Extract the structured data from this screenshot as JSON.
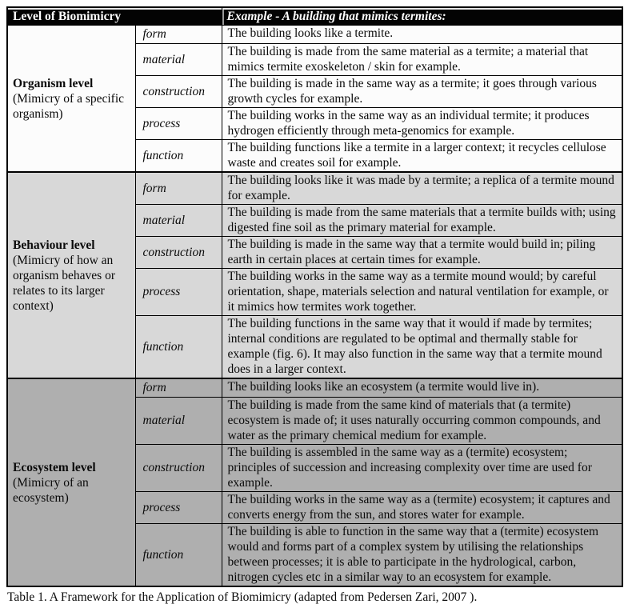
{
  "table": {
    "header": {
      "level_col": "Level of Biomimicry",
      "example_col": "Example - A building that mimics termites:"
    },
    "groups": [
      {
        "name": "Organism level",
        "description": "(Mimicry of a specific organism)",
        "bg_color": "#fcfcfc",
        "rows": [
          {
            "sublevel": "form",
            "example": "The building looks like a termite."
          },
          {
            "sublevel": "material",
            "example": "The building is made from the same material as a termite; a material that mimics termite exoskeleton / skin for example."
          },
          {
            "sublevel": "construction",
            "example": "The building is made in the same way as a termite; it goes through various growth cycles for example."
          },
          {
            "sublevel": "process",
            "example": "The building works in the same way as an individual termite; it produces hydrogen efficiently through meta-genomics for example."
          },
          {
            "sublevel": "function",
            "example": "The building functions like a termite in a larger context; it recycles cellulose waste and creates soil for example."
          }
        ]
      },
      {
        "name": "Behaviour level",
        "description": "(Mimicry of how an organism behaves or relates to its larger context)",
        "bg_color": "#d8d8d8",
        "rows": [
          {
            "sublevel": "form",
            "example": "The building looks like it was made by a termite; a replica of a termite mound for example."
          },
          {
            "sublevel": "material",
            "example": "The building is made from the same materials that a termite builds with; using digested fine soil as the primary material for example."
          },
          {
            "sublevel": "construction",
            "example": "The building is made in the same way that a termite would build in; piling earth in certain places at certain times for example."
          },
          {
            "sublevel": "process",
            "example": "The building works in the same way as a termite mound would; by careful orientation, shape, materials selection and natural ventilation for example, or it mimics how termites work together."
          },
          {
            "sublevel": "function",
            "example": "The building functions in the same way that it would if made by termites; internal conditions are regulated to be optimal and thermally stable for example (fig. 6). It may also function in the same way that a termite mound does in a larger context."
          }
        ]
      },
      {
        "name": "Ecosystem level",
        "description": "(Mimicry of an ecosystem)",
        "bg_color": "#afafaf",
        "rows": [
          {
            "sublevel": "form",
            "example": "The building looks like an ecosystem (a termite would live in)."
          },
          {
            "sublevel": "material",
            "example": "The building is made from the same kind of materials that (a termite) ecosystem is made of; it uses naturally occurring common compounds, and water as the primary chemical medium for example."
          },
          {
            "sublevel": "construction",
            "example": "The building is assembled in the same way as a (termite) ecosystem; principles of succession and increasing complexity over time are used for example."
          },
          {
            "sublevel": "process",
            "example": "The building works in the same way as a (termite) ecosystem; it captures and converts energy from the sun, and stores water for example."
          },
          {
            "sublevel": "function",
            "example": "The building is able to function in the same way that a (termite) ecosystem would and forms part of a complex system by utilising the relationships between processes; it is able to participate in the hydrological, carbon, nitrogen cycles etc in a similar way to an ecosystem for example."
          }
        ]
      }
    ]
  },
  "caption": "Table 1. A Framework for the Application of Biomimicry (adapted from Pedersen Zari, 2007 ).",
  "colors": {
    "header_bg": "#030303",
    "header_text": "#ffffff",
    "border": "#000000",
    "organism_bg": "#fcfcfc",
    "behaviour_bg": "#d8d8d8",
    "ecosystem_bg": "#afafaf"
  }
}
